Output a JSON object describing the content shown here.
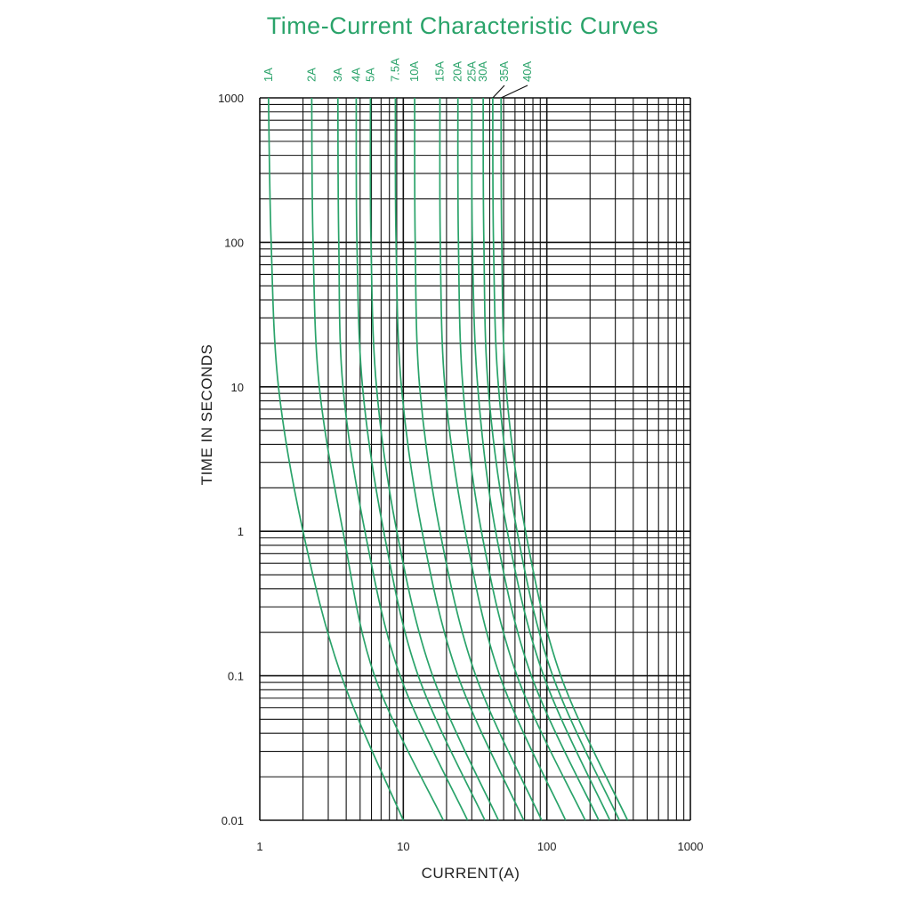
{
  "chart_data": {
    "type": "line",
    "title": "Time-Current Characteristic Curves",
    "xlabel": "CURRENT(A)",
    "ylabel": "TIME IN SECONDS",
    "xscale": "log",
    "yscale": "log",
    "xlim": [
      1,
      1000
    ],
    "ylim": [
      0.01,
      1000
    ],
    "xticks": [
      "1",
      "10",
      "100",
      "1000"
    ],
    "yticks": [
      "1000",
      "100",
      "10",
      "1",
      "0.1",
      "0.01"
    ],
    "grid": true,
    "line_color": "#2aa36a",
    "series": [
      {
        "name": "1A",
        "points": [
          [
            1.15,
            1000
          ],
          [
            1.2,
            100
          ],
          [
            1.35,
            10
          ],
          [
            2.0,
            1
          ],
          [
            3.7,
            0.1
          ],
          [
            10.0,
            0.01
          ]
        ]
      },
      {
        "name": "2A",
        "points": [
          [
            2.3,
            1000
          ],
          [
            2.35,
            100
          ],
          [
            2.6,
            10
          ],
          [
            3.8,
            1
          ],
          [
            6.3,
            0.1
          ],
          [
            19.0,
            0.01
          ]
        ]
      },
      {
        "name": "3A",
        "points": [
          [
            3.5,
            1000
          ],
          [
            3.55,
            100
          ],
          [
            3.8,
            10
          ],
          [
            5.4,
            1
          ],
          [
            9.5,
            0.1
          ],
          [
            28.0,
            0.01
          ]
        ]
      },
      {
        "name": "4A",
        "points": [
          [
            4.7,
            1000
          ],
          [
            4.75,
            100
          ],
          [
            5.2,
            10
          ],
          [
            7.3,
            1
          ],
          [
            12.7,
            0.1
          ],
          [
            37.0,
            0.01
          ]
        ]
      },
      {
        "name": "5A",
        "points": [
          [
            5.9,
            1000
          ],
          [
            5.95,
            100
          ],
          [
            6.5,
            10
          ],
          [
            9.0,
            1
          ],
          [
            16.0,
            0.1
          ],
          [
            46.0,
            0.01
          ]
        ]
      },
      {
        "name": "7.5A",
        "points": [
          [
            8.8,
            1000
          ],
          [
            8.9,
            100
          ],
          [
            9.7,
            10
          ],
          [
            13.5,
            1
          ],
          [
            24.0,
            0.1
          ],
          [
            69.0,
            0.01
          ]
        ]
      },
      {
        "name": "10A",
        "points": [
          [
            12.0,
            1000
          ],
          [
            12.1,
            100
          ],
          [
            13.0,
            10
          ],
          [
            18.0,
            1
          ],
          [
            32.0,
            0.1
          ],
          [
            92.0,
            0.01
          ]
        ]
      },
      {
        "name": "15A",
        "points": [
          [
            18.0,
            1000
          ],
          [
            18.1,
            100
          ],
          [
            19.5,
            10
          ],
          [
            27.0,
            1
          ],
          [
            47.0,
            0.1
          ],
          [
            135.0,
            0.01
          ]
        ]
      },
      {
        "name": "20A",
        "points": [
          [
            24.0,
            1000
          ],
          [
            24.2,
            100
          ],
          [
            26.0,
            10
          ],
          [
            35.0,
            1
          ],
          [
            62.0,
            0.1
          ],
          [
            185.0,
            0.01
          ]
        ]
      },
      {
        "name": "25A",
        "points": [
          [
            30.0,
            1000
          ],
          [
            30.3,
            100
          ],
          [
            33.0,
            10
          ],
          [
            44.0,
            1
          ],
          [
            78.0,
            0.1
          ],
          [
            230.0,
            0.01
          ]
        ]
      },
      {
        "name": "30A",
        "points": [
          [
            36.0,
            1000
          ],
          [
            36.4,
            100
          ],
          [
            39.0,
            10
          ],
          [
            53.0,
            1
          ],
          [
            95.0,
            0.1
          ],
          [
            275.0,
            0.01
          ]
        ]
      },
      {
        "name": "35A",
        "points": [
          [
            42.0,
            1000
          ],
          [
            42.5,
            100
          ],
          [
            46.0,
            10
          ],
          [
            62.0,
            1
          ],
          [
            110.0,
            0.1
          ],
          [
            320.0,
            0.01
          ]
        ]
      },
      {
        "name": "40A",
        "points": [
          [
            48.0,
            1000
          ],
          [
            48.5,
            100
          ],
          [
            52.0,
            10
          ],
          [
            71.0,
            1
          ],
          [
            125.0,
            0.1
          ],
          [
            365.0,
            0.01
          ]
        ]
      }
    ]
  }
}
